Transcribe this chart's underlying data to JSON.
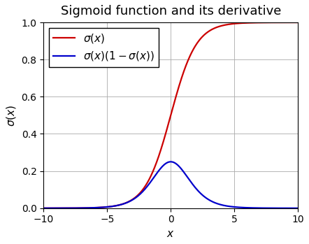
{
  "title": "Sigmoid function and its derivative",
  "xlabel": "$x$",
  "ylabel": "$\\sigma(x)$",
  "xlim": [
    -10,
    10
  ],
  "ylim": [
    0,
    1
  ],
  "xticks": [
    -10,
    -5,
    0,
    5,
    10
  ],
  "yticks": [
    0,
    0.2,
    0.4,
    0.6,
    0.8,
    1.0
  ],
  "sigmoid_color": "#cc0000",
  "derivative_color": "#0000cc",
  "sigmoid_label": "$\\sigma(x)$",
  "derivative_label": "$\\sigma(x)(1-\\sigma(x))$",
  "line_width": 1.6,
  "background_color": "#ffffff",
  "grid_color": "#aaaaaa",
  "title_fontsize": 13,
  "label_fontsize": 11,
  "tick_fontsize": 10,
  "legend_fontsize": 11
}
